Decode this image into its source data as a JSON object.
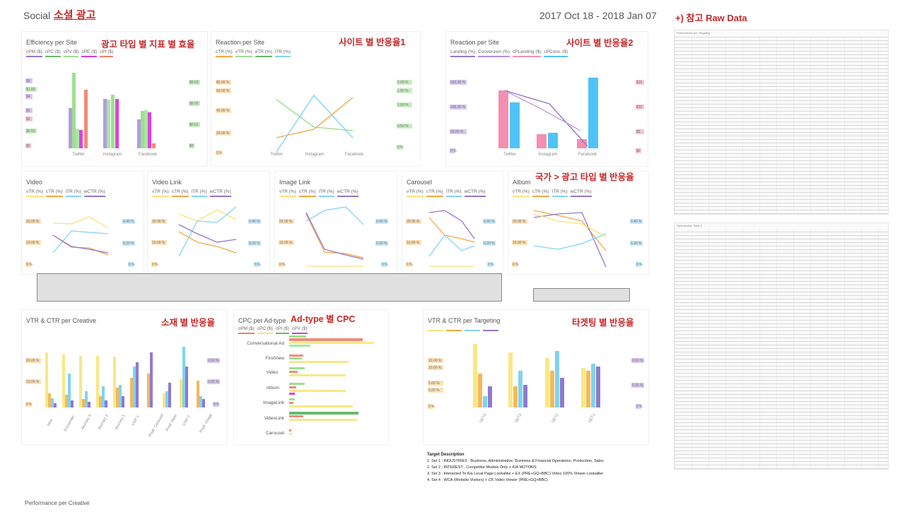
{
  "header": {
    "brand": "Social",
    "title_ko": "소셜 광고",
    "date_range": "2017 Oct 18 - 2018 Jan 07",
    "raw_title": "+) 참고 Raw Data"
  },
  "colors": {
    "accent": "#c62828",
    "purple": "#9575cd",
    "green": "#66bb6a",
    "pink": "#f06292",
    "salmon": "#ef7f6b",
    "cyan": "#4fc3f7",
    "orange": "#f5a742",
    "yellow": "#f9e27a",
    "magenta": "#d63cd6"
  },
  "panels": {
    "eff_site": {
      "title": "Efficiency per Site",
      "annotation": "광고 타입 별 지표 별 효율",
      "legend": [
        "cPM ($)",
        "cPC ($)",
        "cPV ($)",
        "cPE ($)",
        "cPI ($)"
      ]
    },
    "react_site1": {
      "title": "Reaction per Site",
      "annotation": "사이트 별 반응율1",
      "legend": [
        "cTR (%)",
        "vTR (%)",
        "eTR (%)",
        "iTR (%)"
      ]
    },
    "react_site2": {
      "title": "Reaction per Site",
      "annotation": "사이트 별 반응율2",
      "legend": [
        "Landing (%)",
        "Conversion (%)",
        "cPLanding ($)",
        "cPConv. ($)"
      ]
    },
    "video": {
      "title": "Video",
      "legend": [
        "vTR (%)",
        "cTR (%)",
        "iTR (%)",
        "wCTR (%)"
      ]
    },
    "video_link": {
      "title": "Video Link",
      "legend": [
        "vTR (%)",
        "cTR (%)",
        "iTR (%)",
        "wCTR (%)"
      ]
    },
    "image_link": {
      "title": "Image Link",
      "legend": [
        "vTR (%)",
        "cTR (%)",
        "iTR (%)",
        "wCTR (%)"
      ]
    },
    "carousel": {
      "title": "Carousel",
      "legend": [
        "vTR (%)",
        "cTR (%)",
        "iTR (%)",
        "wCTR (%)"
      ]
    },
    "album": {
      "title": "Album",
      "annotation": "국가 > 광고 타입 별 반응율",
      "legend": [
        "vTR (%)",
        "cTR (%)",
        "iTR (%)",
        "wCTR (%)"
      ]
    },
    "creative": {
      "title": "VTR & CTR per Creative",
      "annotation": "소재 별 반응율"
    },
    "adtype": {
      "title": "CPC per Ad-type",
      "annotation": "Ad-type 별 CPC",
      "legend": [
        "cPM ($)",
        "cPC ($)",
        "cPI ($)",
        "cPV ($)"
      ]
    },
    "targeting": {
      "title": "VTR & CTR per Targeting",
      "annotation": "타겟팅 별 반응율"
    }
  },
  "site_chart": {
    "categories": [
      "Twitter",
      "Instagram",
      "Facebook"
    ]
  },
  "creative_chart": {
    "categories": [
      "Intro",
      "Encounter",
      "Journey 3",
      "Journey 2",
      "Journey 1",
      "USP 1",
      "Prod. Carousel",
      "Prod. Main",
      "USP 2",
      "Prod. Image"
    ]
  },
  "adtype_chart": {
    "categories": [
      "Conversational Ad",
      "FirstView",
      "Video",
      "Album",
      "ImageLink",
      "VideoLink",
      "Carousel"
    ]
  },
  "targeting_chart": {
    "categories": [
      "SET4",
      "SET3",
      "SET2",
      "SET1"
    ]
  },
  "ticks": {
    "eff_left": [
      "$6",
      "$1.50",
      "$4",
      "$1",
      "$2",
      "$0.50",
      "$0"
    ],
    "eff_right": [
      "$0.03",
      "$0.02",
      "$0.01",
      "$0"
    ],
    "r1_left": [
      "80.00 %",
      "60.00 %",
      "40.00 %",
      "20.00 %",
      "0 %"
    ],
    "r1_right": [
      "2.00 %",
      "1.50 %",
      "1.00 %",
      "0.50 %",
      "0 %"
    ],
    "r2_left": [
      "150.00 %",
      "100.00 %",
      "50.00 %",
      "0 %"
    ],
    "r2_right": [
      "$15",
      "$10",
      "$5",
      "$0"
    ],
    "fmt_left": [
      "20.00 %",
      "10.00 %",
      "0 %"
    ],
    "fmt_right": [
      "0.40 %",
      "0.20 %",
      "0 %"
    ],
    "cr_left": [
      "20.00 %",
      "10.00 %",
      "0 %"
    ],
    "cr_right": [
      "0.50 %",
      "0.25 %",
      "0 %"
    ],
    "tg_left": [
      "10.00 %",
      "5.00 %",
      "0 %"
    ],
    "tg_right": [
      "0.50 %",
      "0.25 %",
      "0 %"
    ]
  },
  "targets": {
    "heading": "Target Description",
    "lines": [
      "1. Set 1 : INDUSTRIES : Business, Administrative, Business & Financial Operations, Production, Sales",
      "2. Set 2 : INTEREST : Competitor Models Only + KIA MOTORS",
      "3. Set 3 : Interacted To Kia Local Page Lookalike + EX (PRE+GQ+BBC) Video 100% Viewer Lookalike",
      "4. Set 4 : WCA (Website Visitors) + CK Video Viewer (PRE+GQ+BBC)"
    ]
  },
  "raw": {
    "table1": "Performance per Targeting",
    "table2": "Optimization Table 2"
  },
  "footer": {
    "caption": "Performance per Creative"
  }
}
